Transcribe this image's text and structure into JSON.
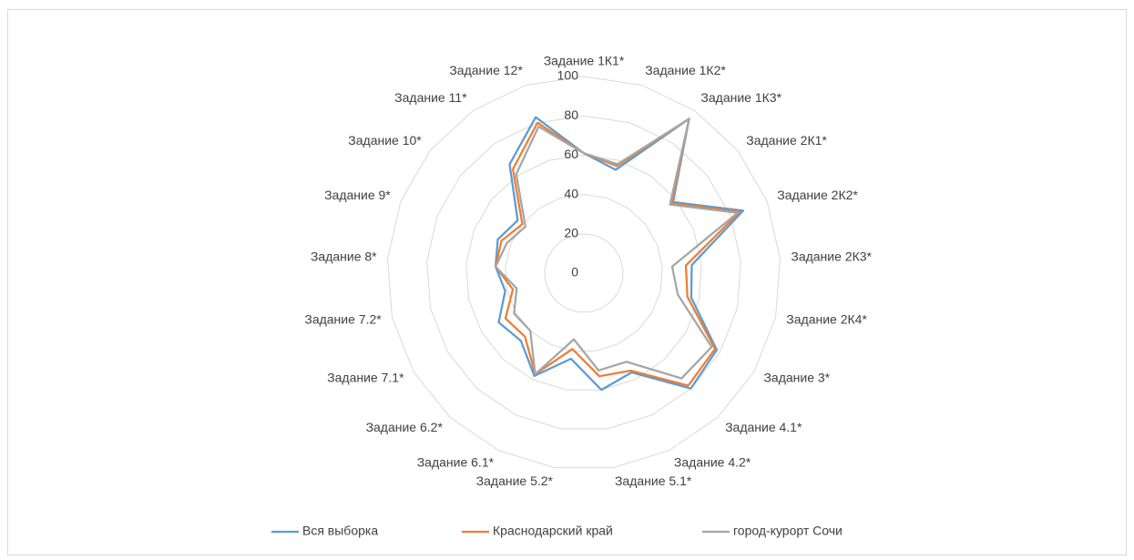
{
  "chart_data": {
    "type": "radar",
    "categories": [
      "Задание 1К1*",
      "Задание 1К2*",
      "Задание 1К3*",
      "Задание 2К1*",
      "Задание 2К2*",
      "Задание 2К3*",
      "Задание 2К4*",
      "Задание 3*",
      "Задание 4.1*",
      "Задание 4.2*",
      "Задание 5.1*",
      "Задание 5.2*",
      "Задание 6.1*",
      "Задание 6.2*",
      "Задание 7.1*",
      "Задание 7.2*",
      "Задание 8*",
      "Задание 9*",
      "Задание 10*",
      "Задание 11*",
      "Задание 12*"
    ],
    "series": [
      {
        "name": "Вся выборка",
        "color": "#5b9bd5",
        "values": [
          61,
          55,
          95,
          58,
          87,
          55,
          56,
          78,
          80,
          56,
          60,
          44,
          58,
          47,
          50,
          41,
          45,
          47,
          43,
          67,
          83
        ]
      },
      {
        "name": "Краснодарский край",
        "color": "#ed7d31",
        "values": [
          61,
          57,
          95,
          57,
          85,
          52,
          54,
          77,
          78,
          55,
          53,
          39,
          57,
          44,
          46,
          37,
          45,
          45,
          40,
          64,
          80
        ]
      },
      {
        "name": "город-курорт Сочи",
        "color": "#a5a5a5",
        "values": [
          61,
          58,
          95,
          56,
          84,
          45,
          49,
          75,
          73,
          50,
          50,
          34,
          57,
          40,
          41,
          35,
          45,
          42,
          38,
          61,
          78
        ]
      }
    ],
    "ylim": [
      0,
      100
    ],
    "yticks": [
      0,
      20,
      40,
      60,
      80,
      100
    ],
    "grid": true,
    "legend": "bottom"
  }
}
